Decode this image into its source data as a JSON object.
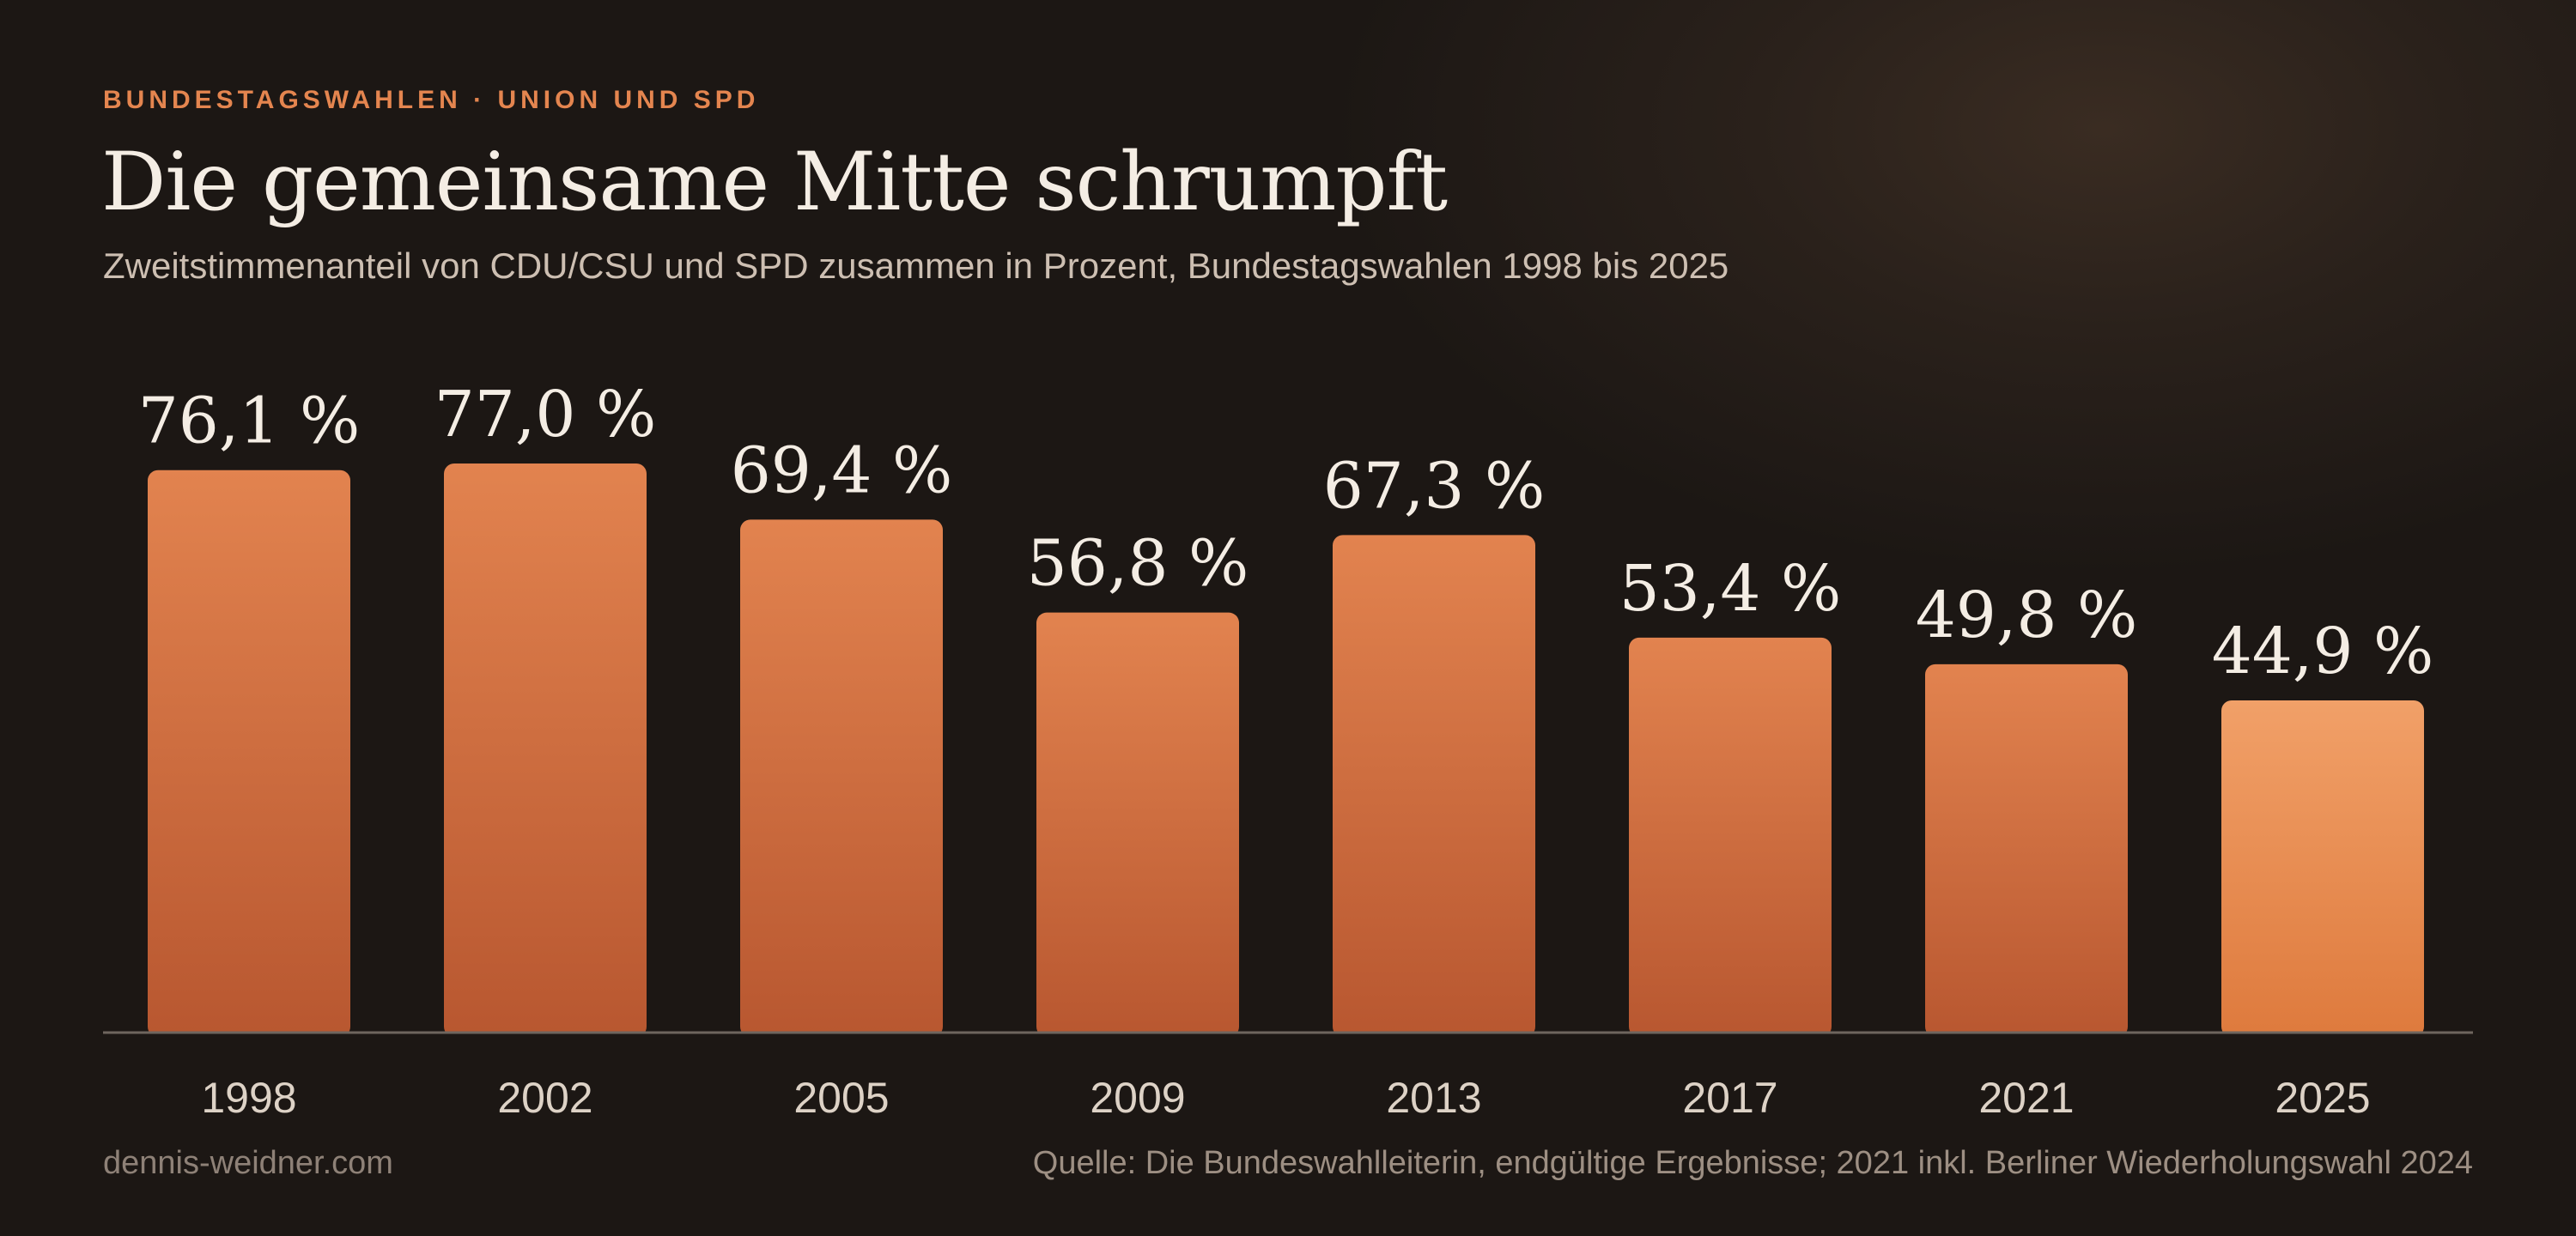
{
  "kicker": "BUNDESTAGSWAHLEN · UNION UND SPD",
  "title": "Die gemeinsame Mitte schrumpft",
  "subtitle": "Zweitstimmenanteil von CDU/CSU und SPD zusammen in Prozent, Bundestagswahlen 1998 bis 2025",
  "source": "Quelle: Die Bundeswahlleiterin, endgültige Ergebnisse; 2021 inkl. Berliner Wiederholungswahl 2024",
  "brand": "dennis-weidner.com",
  "colors": {
    "bar_top": "#e2834f",
    "bar_bottom": "#b85730",
    "highlight_top": "#f1a068",
    "highlight_bottom": "#de7a3d",
    "label": "#f4ede4",
    "axis": "#6e655e",
    "tick": "#ddd2c6"
  },
  "chart_data": {
    "type": "bar",
    "categories": [
      "1998",
      "2002",
      "2005",
      "2009",
      "2013",
      "2017",
      "2021",
      "2025"
    ],
    "values": [
      76.1,
      77.0,
      69.4,
      56.8,
      67.3,
      53.4,
      49.8,
      44.9
    ],
    "data_labels": [
      "76,1 %",
      "77,0 %",
      "69,4 %",
      "56,8 %",
      "67,3 %",
      "53,4 %",
      "49,8 %",
      "44,9 %"
    ],
    "highlight_category": "2025",
    "ylim": [
      0,
      77.0
    ],
    "grid": false,
    "legend": "none",
    "title": "Die gemeinsame Mitte schrumpft",
    "xlabel": "",
    "ylabel": ""
  }
}
